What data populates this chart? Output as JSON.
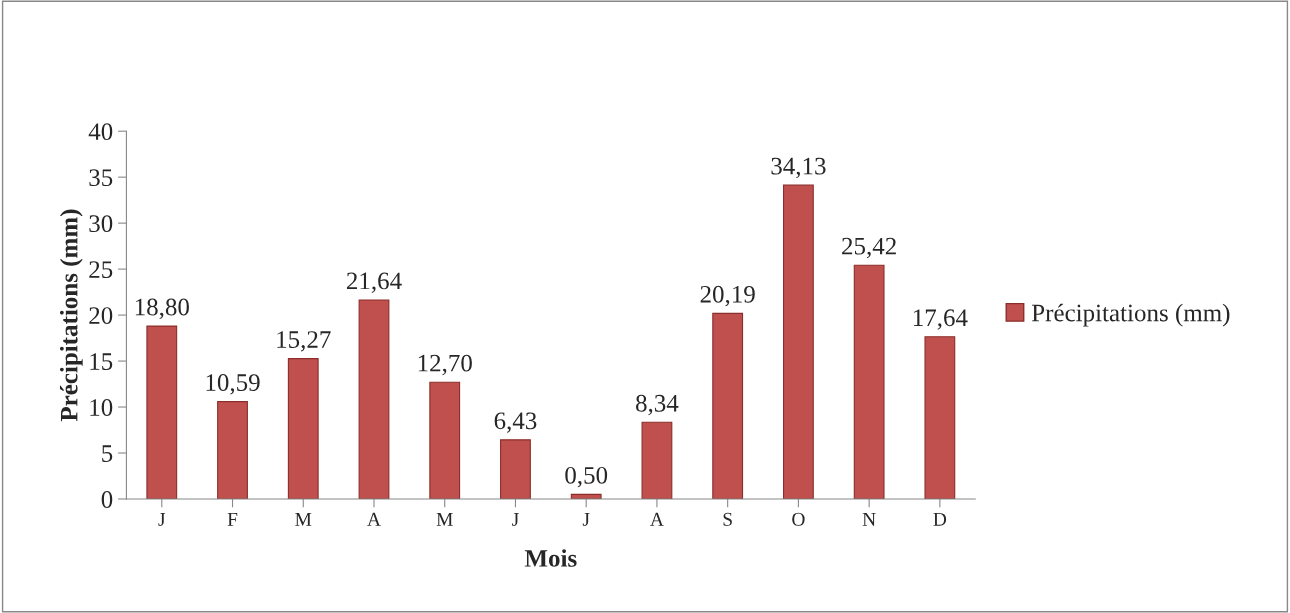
{
  "chart_data": {
    "type": "bar",
    "xlabel": "Mois",
    "ylabel": "Précipitations (mm)",
    "categories": [
      "J",
      "F",
      "M",
      "A",
      "M",
      "J",
      "J",
      "A",
      "S",
      "O",
      "N",
      "D"
    ],
    "series": [
      {
        "name": "Précipitations (mm)",
        "color": "#c0504d",
        "values": [
          18.8,
          10.59,
          15.27,
          21.64,
          12.7,
          6.43,
          0.5,
          8.34,
          20.19,
          34.13,
          25.42,
          17.64
        ],
        "value_labels": [
          "18,80",
          "10,59",
          "15,27",
          "21,64",
          "12,70",
          "6,43",
          "0,50",
          "8,34",
          "20,19",
          "34,13",
          "25,42",
          "17,64"
        ]
      }
    ],
    "ylim": [
      0,
      40
    ],
    "yticks": [
      0,
      5,
      10,
      15,
      20,
      25,
      30,
      35,
      40
    ],
    "grid": false,
    "legend": "right"
  }
}
